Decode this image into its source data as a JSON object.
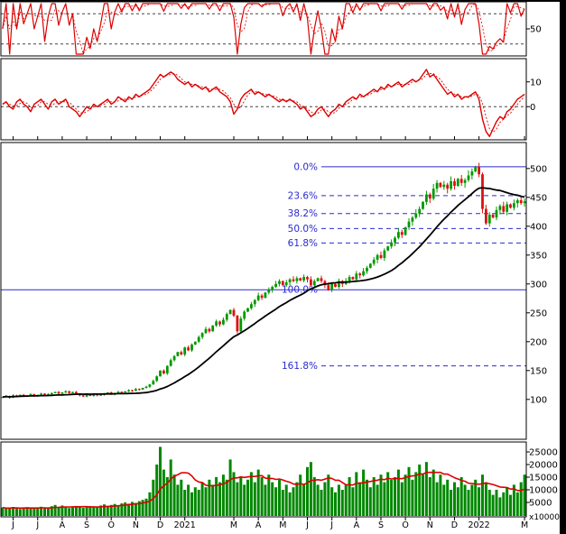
{
  "meta": {
    "description": "Multi-panel daily stock technical analysis chart with oscillators, candlesticks, Fibonacci retracement and volume",
    "bg": "#ffffff"
  },
  "colors": {
    "up": "#009900",
    "down": "#dd1111",
    "indicator": "#dd0000",
    "price_ma": "#000000",
    "fib": "#2a2ad0",
    "volume": "#008800",
    "volume_ma": "#dd0000",
    "axis_text": "#000000",
    "border": "#000000",
    "ref_dash": "#444444"
  },
  "x_axis": {
    "labels": [
      {
        "text": "J",
        "month_index": 0
      },
      {
        "text": "J",
        "month_index": 1
      },
      {
        "text": "A",
        "month_index": 2
      },
      {
        "text": "S",
        "month_index": 3
      },
      {
        "text": "O",
        "month_index": 4
      },
      {
        "text": "N",
        "month_index": 5
      },
      {
        "text": "D",
        "month_index": 6
      },
      {
        "text": "2021",
        "month_index": 7
      },
      {
        "text": "M",
        "month_index": 9
      },
      {
        "text": "A",
        "month_index": 10
      },
      {
        "text": "M",
        "month_index": 11
      },
      {
        "text": "J",
        "month_index": 12
      },
      {
        "text": "J",
        "month_index": 13
      },
      {
        "text": "A",
        "month_index": 14
      },
      {
        "text": "S",
        "month_index": 15
      },
      {
        "text": "O",
        "month_index": 16
      },
      {
        "text": "N",
        "month_index": 17
      },
      {
        "text": "D",
        "month_index": 18
      },
      {
        "text": "2022",
        "month_index": 19
      },
      {
        "text": "M",
        "month_index": 21
      }
    ]
  },
  "chart_data": {
    "type": "candlestick_multi_panel",
    "panels": [
      {
        "id": "stochastic",
        "type": "line",
        "indicator": "stochastic_k",
        "source": "price.close",
        "window": 8,
        "range": [
          0,
          100
        ],
        "ref_lines": [
          80,
          20
        ],
        "axis_ticks": [
          {
            "value": 50,
            "text": "50"
          }
        ]
      },
      {
        "id": "momentum",
        "type": "line",
        "range": [
          -13,
          19
        ],
        "signal_window": 3,
        "ref_lines": [
          0
        ],
        "axis_ticks": [
          {
            "value": 10,
            "text": "10"
          },
          {
            "value": 0,
            "text": "0"
          }
        ],
        "values": [
          1,
          2,
          0,
          -1,
          2,
          3,
          1,
          0,
          -2,
          1,
          2,
          3,
          1,
          -1,
          2,
          3,
          1,
          2,
          3,
          0,
          -1,
          -2,
          -4,
          -2,
          0,
          -1,
          1,
          0,
          1,
          2,
          3,
          1,
          2,
          4,
          3,
          2,
          4,
          3,
          5,
          4,
          5,
          6,
          7,
          9,
          11,
          13,
          12,
          13,
          14,
          13,
          11,
          10,
          9,
          10,
          8,
          9,
          8,
          7,
          8,
          6,
          7,
          8,
          6,
          5,
          4,
          2,
          -3,
          -1,
          3,
          5,
          6,
          7,
          5,
          6,
          5,
          4,
          5,
          4,
          3,
          2,
          3,
          2,
          3,
          2,
          1,
          -1,
          0,
          -2,
          -4,
          -3,
          -1,
          0,
          -2,
          -4,
          -2,
          -1,
          1,
          0,
          2,
          3,
          4,
          3,
          5,
          4,
          5,
          6,
          7,
          6,
          8,
          7,
          9,
          8,
          9,
          10,
          8,
          9,
          10,
          11,
          10,
          11,
          13,
          15,
          12,
          13,
          11,
          9,
          7,
          5,
          6,
          4,
          5,
          3,
          4,
          4,
          5,
          6,
          3,
          -5,
          -10,
          -12,
          -9,
          -6,
          -4,
          -5,
          -2,
          -1,
          1,
          3,
          4,
          5
        ]
      },
      {
        "id": "price",
        "type": "candlestick",
        "ma_window": 20,
        "axis_ticks": [
          {
            "value": 500,
            "text": "500"
          },
          {
            "value": 450,
            "text": "450"
          },
          {
            "value": 400,
            "text": "400"
          },
          {
            "value": 350,
            "text": "350"
          },
          {
            "value": 300,
            "text": "300"
          },
          {
            "value": 250,
            "text": "250"
          },
          {
            "value": 200,
            "text": "200"
          },
          {
            "value": 150,
            "text": "150"
          },
          {
            "value": 100,
            "text": "100"
          }
        ],
        "fib_levels": [
          {
            "label": "0.0%",
            "value": 503,
            "style": "solid",
            "full_width": false
          },
          {
            "label": "23.6%",
            "value": 453,
            "style": "dashed",
            "full_width": false
          },
          {
            "label": "38.2%",
            "value": 422,
            "style": "dashed",
            "full_width": false
          },
          {
            "label": "50.0%",
            "value": 396,
            "style": "dashed",
            "full_width": false
          },
          {
            "label": "61.8%",
            "value": 371,
            "style": "dashed",
            "full_width": false
          },
          {
            "label": "100.0%",
            "value": 290,
            "style": "solid",
            "full_width": true
          },
          {
            "label": "161.8%",
            "value": 158,
            "style": "dashed",
            "full_width": false
          }
        ],
        "close": [
          104,
          106,
          103,
          107,
          105,
          108,
          106,
          107,
          109,
          106,
          108,
          110,
          107,
          109,
          111,
          113,
          110,
          112,
          114,
          111,
          113,
          110,
          107,
          105,
          108,
          106,
          109,
          107,
          108,
          110,
          112,
          109,
          111,
          113,
          112,
          114,
          116,
          115,
          118,
          117,
          120,
          122,
          126,
          132,
          140,
          150,
          145,
          158,
          168,
          175,
          182,
          178,
          190,
          185,
          195,
          200,
          208,
          215,
          222,
          218,
          228,
          235,
          230,
          238,
          248,
          255,
          245,
          218,
          240,
          252,
          258,
          265,
          272,
          280,
          276,
          285,
          290,
          295,
          300,
          305,
          298,
          303,
          308,
          305,
          310,
          306,
          312,
          308,
          298,
          305,
          310,
          305,
          298,
          290,
          300,
          295,
          305,
          300,
          305,
          312,
          308,
          318,
          315,
          322,
          328,
          335,
          342,
          350,
          345,
          358,
          365,
          372,
          380,
          390,
          385,
          398,
          408,
          415,
          422,
          430,
          442,
          455,
          448,
          465,
          475,
          468,
          472,
          465,
          478,
          470,
          482,
          475,
          480,
          488,
          495,
          503,
          490,
          430,
          405,
          420,
          415,
          428,
          435,
          425,
          438,
          432,
          440,
          445,
          440,
          443
        ]
      },
      {
        "id": "volume",
        "type": "bar",
        "ma_window": 10,
        "unit_label": "x10000",
        "axis_ticks": [
          {
            "value": 25000,
            "text": "25000"
          },
          {
            "value": 20000,
            "text": "20000"
          },
          {
            "value": 15000,
            "text": "15000"
          },
          {
            "value": 10000,
            "text": "10000"
          },
          {
            "value": 5000,
            "text": "5000"
          }
        ],
        "values": [
          3000,
          2500,
          2800,
          3200,
          2600,
          2400,
          2900,
          3100,
          2700,
          2500,
          3000,
          3300,
          2800,
          2600,
          3500,
          4000,
          3200,
          3800,
          3000,
          2800,
          3400,
          3600,
          3100,
          2900,
          3300,
          3500,
          3000,
          3200,
          3800,
          4200,
          3600,
          4000,
          4400,
          3900,
          4600,
          5000,
          4500,
          5200,
          4800,
          5500,
          6000,
          6500,
          9000,
          14000,
          20000,
          27000,
          18000,
          15000,
          22000,
          16000,
          12000,
          14000,
          10000,
          12000,
          9000,
          11000,
          10000,
          13000,
          11000,
          14000,
          12000,
          15000,
          13000,
          16000,
          14000,
          22000,
          17000,
          13000,
          15000,
          12000,
          14000,
          17000,
          13000,
          18000,
          15000,
          12000,
          16000,
          13000,
          11000,
          14000,
          10000,
          12000,
          9000,
          11000,
          13000,
          16000,
          12000,
          19000,
          21000,
          15000,
          12000,
          10000,
          13000,
          16000,
          11000,
          9000,
          12000,
          10000,
          12000,
          15000,
          11000,
          17000,
          13000,
          18000,
          14000,
          11000,
          15000,
          12000,
          16000,
          13000,
          17000,
          14000,
          15000,
          18000,
          13000,
          16000,
          19000,
          14000,
          17000,
          20000,
          16000,
          21000,
          15000,
          18000,
          13000,
          16000,
          12000,
          14000,
          10000,
          13000,
          11000,
          15000,
          12000,
          10000,
          12000,
          14000,
          11000,
          16000,
          13000,
          10000,
          8000,
          10000,
          7000,
          9000,
          11000,
          8000,
          12000,
          9000,
          13000,
          16000
        ]
      }
    ]
  }
}
